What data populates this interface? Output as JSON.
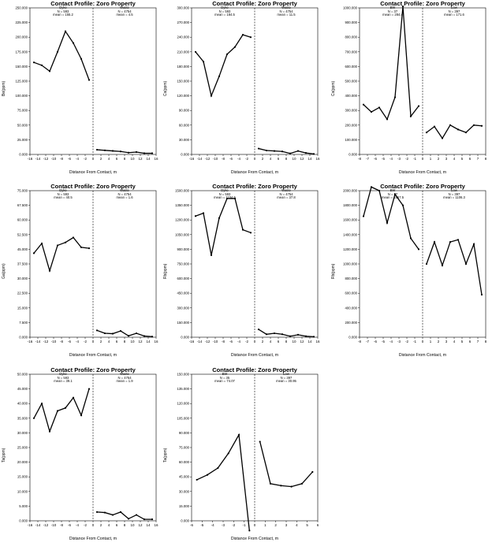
{
  "chart_data": [
    {
      "type": "line",
      "title": "Contact Profile: Zoro Property",
      "xlabel": "Distance From Contact, m",
      "ylabel": "Be(ppm)",
      "xlim": [
        -16,
        16
      ],
      "ylim": [
        0,
        250000
      ],
      "yticks": [
        0,
        25000,
        50000,
        75000,
        100000,
        125000,
        150000,
        175000,
        200000,
        225000,
        250000
      ],
      "ytick_labels": [
        "0.000",
        "25.000",
        "50.000",
        "75.000",
        "100.000",
        "125.000",
        "150.000",
        "175.000",
        "200.000",
        "225.000",
        "250.000"
      ],
      "xticks": [
        -16,
        -14,
        -12,
        -10,
        -8,
        -6,
        -4,
        -2,
        0,
        2,
        4,
        6,
        8,
        10,
        12,
        14,
        16
      ],
      "groups": [
        {
          "name": "Dyke",
          "n": "N = 593",
          "mean": "mean = 155.2"
        },
        {
          "name": "Waste",
          "n": "N = 4754",
          "mean": "mean = 4.5"
        }
      ],
      "series": [
        {
          "name": "Dyke",
          "x": [
            -15,
            -13,
            -11,
            -9,
            -7,
            -5,
            -3,
            -1
          ],
          "y": [
            157000,
            152000,
            142000,
            175000,
            210000,
            190000,
            163000,
            127000
          ]
        },
        {
          "name": "Waste",
          "x": [
            1,
            3,
            5,
            7,
            9,
            11,
            13,
            15
          ],
          "y": [
            8000,
            7000,
            6000,
            5000,
            3000,
            4000,
            2000,
            2000
          ]
        }
      ]
    },
    {
      "type": "line",
      "title": "Contact Profile: Zoro Property",
      "xlabel": "Distance From Contact, m",
      "ylabel": "Cs(ppm)",
      "xlim": [
        -16,
        16
      ],
      "ylim": [
        0,
        300000
      ],
      "yticks": [
        0,
        30000,
        60000,
        90000,
        120000,
        150000,
        180000,
        210000,
        240000,
        270000,
        300000
      ],
      "ytick_labels": [
        "0.000",
        "30.000",
        "60.000",
        "90.000",
        "120.000",
        "150.000",
        "180.000",
        "210.000",
        "240.000",
        "270.000",
        "300.000"
      ],
      "xticks": [
        -16,
        -14,
        -12,
        -10,
        -8,
        -6,
        -4,
        -2,
        0,
        2,
        4,
        6,
        8,
        10,
        12,
        14,
        16
      ],
      "groups": [
        {
          "name": "Dyke",
          "n": "N = 593",
          "mean": "mean = 184.5"
        },
        {
          "name": "Waste",
          "n": "N = 4754",
          "mean": "mean = 11.5"
        }
      ],
      "series": [
        {
          "name": "Dyke",
          "x": [
            -15,
            -13,
            -11,
            -9,
            -7,
            -5,
            -3,
            -1
          ],
          "y": [
            210000,
            190000,
            120000,
            160000,
            205000,
            220000,
            245000,
            240000
          ]
        },
        {
          "name": "Waste",
          "x": [
            1,
            3,
            5,
            7,
            9,
            11,
            13,
            15
          ],
          "y": [
            12000,
            8000,
            7000,
            6000,
            2000,
            7000,
            3000,
            1000
          ]
        }
      ]
    },
    {
      "type": "line",
      "title": "Contact Profile: Zoro Property",
      "xlabel": "Distance From Contact, m",
      "ylabel": "Cs(ppm)",
      "xlim": [
        -8,
        8
      ],
      "ylim": [
        0,
        1000000
      ],
      "yticks": [
        0,
        100000,
        200000,
        300000,
        400000,
        500000,
        600000,
        700000,
        800000,
        900000,
        1000000
      ],
      "ytick_labels": [
        "0.000",
        "100.000",
        "200.000",
        "300.000",
        "400.000",
        "500.000",
        "600.000",
        "700.000",
        "800.000",
        "900.000",
        "1000.000"
      ],
      "xticks": [
        -8,
        -7,
        -6,
        -5,
        -4,
        -3,
        -2,
        -1,
        0,
        1,
        2,
        3,
        4,
        5,
        6,
        7,
        8
      ],
      "groups": [
        {
          "name": "EW",
          "n": "N = 37",
          "mean": "mean = 284.4"
        },
        {
          "name": "Low",
          "n": "N = 397",
          "mean": "mean = 171.6"
        }
      ],
      "series": [
        {
          "name": "EW",
          "x": [
            -7.5,
            -6.5,
            -5.5,
            -4.5,
            -3.5,
            -2.5,
            -1.5,
            -0.5
          ],
          "y": [
            340000,
            290000,
            320000,
            240000,
            390000,
            1010000,
            260000,
            330000
          ]
        },
        {
          "name": "Low",
          "x": [
            0.5,
            1.5,
            2.5,
            3.5,
            4.5,
            5.5,
            6.5,
            7.5
          ],
          "y": [
            150000,
            190000,
            110000,
            200000,
            170000,
            150000,
            200000,
            195000
          ]
        }
      ]
    },
    {
      "type": "line",
      "title": "Contact Profile: Zoro Property",
      "xlabel": "Distance From Contact, m",
      "ylabel": "Ga(ppm)",
      "xlim": [
        -16,
        16
      ],
      "ylim": [
        0,
        75000
      ],
      "yticks": [
        0,
        7500,
        15000,
        22500,
        30000,
        37500,
        45000,
        52500,
        60000,
        67500,
        75000
      ],
      "ytick_labels": [
        "0.000",
        "7.500",
        "15.000",
        "22.500",
        "30.000",
        "37.500",
        "45.000",
        "52.500",
        "60.000",
        "67.500",
        "75.000"
      ],
      "xticks": [
        -16,
        -14,
        -12,
        -10,
        -8,
        -6,
        -4,
        -2,
        0,
        2,
        4,
        6,
        8,
        10,
        12,
        14,
        16
      ],
      "groups": [
        {
          "name": "Dyke",
          "n": "N = 593",
          "mean": "mean = 40.5"
        },
        {
          "name": "Waste",
          "n": "N = 4754",
          "mean": "mean = 1.6"
        }
      ],
      "series": [
        {
          "name": "Dyke",
          "x": [
            -15,
            -13,
            -11,
            -9,
            -7,
            -5,
            -3,
            -1
          ],
          "y": [
            43000,
            48000,
            34000,
            47000,
            48500,
            51000,
            46000,
            45500
          ]
        },
        {
          "name": "Waste",
          "x": [
            1,
            3,
            5,
            7,
            9,
            11,
            13,
            15
          ],
          "y": [
            3500,
            2000,
            1800,
            3200,
            700,
            2000,
            600,
            300
          ]
        }
      ]
    },
    {
      "type": "line",
      "title": "Contact Profile: Zoro Property",
      "xlabel": "Distance From Contact, m",
      "ylabel": "Rb(ppm)",
      "xlim": [
        -16,
        16
      ],
      "ylim": [
        0,
        1500000
      ],
      "yticks": [
        0,
        150000,
        300000,
        450000,
        600000,
        750000,
        900000,
        1050000,
        1200000,
        1350000,
        1500000
      ],
      "ytick_labels": [
        "0.000",
        "150.000",
        "300.000",
        "450.000",
        "600.000",
        "750.000",
        "900.000",
        "1050.000",
        "1200.000",
        "1350.000",
        "1500.000"
      ],
      "xticks": [
        -16,
        -14,
        -12,
        -10,
        -8,
        -6,
        -4,
        -2,
        0,
        2,
        4,
        6,
        8,
        10,
        12,
        14,
        16
      ],
      "groups": [
        {
          "name": "Dyke",
          "n": "N = 593",
          "mean": "mean = 1104.5"
        },
        {
          "name": "Waste",
          "n": "N = 4754",
          "mean": "mean = 37.8"
        }
      ],
      "series": [
        {
          "name": "Dyke",
          "x": [
            -15,
            -13,
            -11,
            -9,
            -7,
            -5,
            -3,
            -1
          ],
          "y": [
            1240000,
            1270000,
            840000,
            1220000,
            1420000,
            1420000,
            1100000,
            1070000
          ]
        },
        {
          "name": "Waste",
          "x": [
            1,
            3,
            5,
            7,
            9,
            11,
            13,
            15
          ],
          "y": [
            80000,
            30000,
            40000,
            30000,
            10000,
            25000,
            10000,
            5000
          ]
        }
      ]
    },
    {
      "type": "line",
      "title": "Contact Profile: Zoro Property",
      "xlabel": "Distance From Contact, m",
      "ylabel": "Rb(ppm)",
      "xlim": [
        -8,
        8
      ],
      "ylim": [
        0,
        2000000
      ],
      "yticks": [
        0,
        200000,
        400000,
        600000,
        800000,
        1000000,
        1200000,
        1400000,
        1600000,
        1800000,
        2000000
      ],
      "ytick_labels": [
        "0.000",
        "200.000",
        "400.000",
        "600.000",
        "800.000",
        "1000.000",
        "1200.000",
        "1400.000",
        "1600.000",
        "1800.000",
        "2000.000"
      ],
      "xticks": [
        -8,
        -7,
        -6,
        -5,
        -4,
        -3,
        -2,
        -1,
        0,
        1,
        2,
        3,
        4,
        5,
        6,
        7,
        8
      ],
      "groups": [
        {
          "name": "EW",
          "n": "N = 37",
          "mean": "mean = 1557.5"
        },
        {
          "name": "Low",
          "n": "N = 397",
          "mean": "mean = 1106.3"
        }
      ],
      "series": [
        {
          "name": "EW",
          "x": [
            -7.5,
            -6.5,
            -5.5,
            -4.5,
            -3.5,
            -2.5,
            -1.5,
            -0.5
          ],
          "y": [
            1650000,
            2050000,
            2000000,
            1560000,
            1950000,
            1800000,
            1350000,
            1200000
          ]
        },
        {
          "name": "Low",
          "x": [
            0.5,
            1.5,
            2.5,
            3.5,
            4.5,
            5.5,
            6.5,
            7.5
          ],
          "y": [
            1000000,
            1300000,
            980000,
            1300000,
            1330000,
            1000000,
            1270000,
            580000
          ]
        }
      ]
    },
    {
      "type": "line",
      "title": "Contact Profile: Zoro Property",
      "xlabel": "Distance From Contact, m",
      "ylabel": "Ta(ppm)",
      "xlim": [
        -16,
        16
      ],
      "ylim": [
        0,
        50000
      ],
      "yticks": [
        0,
        5000,
        10000,
        15000,
        20000,
        25000,
        30000,
        35000,
        40000,
        45000,
        50000
      ],
      "ytick_labels": [
        "0.000",
        "5.000",
        "10.000",
        "15.000",
        "20.000",
        "25.000",
        "30.000",
        "35.000",
        "40.000",
        "45.000",
        "50.000"
      ],
      "xticks": [
        -16,
        -14,
        -12,
        -10,
        -8,
        -6,
        -4,
        -2,
        0,
        2,
        4,
        6,
        8,
        10,
        12,
        14,
        16
      ],
      "groups": [
        {
          "name": "Dyke",
          "n": "N = 593",
          "mean": "mean = 39.1"
        },
        {
          "name": "Waste",
          "n": "N = 4754",
          "mean": "mean = 1.9"
        }
      ],
      "series": [
        {
          "name": "Dyke",
          "x": [
            -15,
            -13,
            -11,
            -9,
            -7,
            -5,
            -3,
            -1
          ],
          "y": [
            35000,
            40000,
            30500,
            37500,
            38500,
            42000,
            36000,
            45000
          ]
        },
        {
          "name": "Waste",
          "x": [
            1,
            3,
            5,
            7,
            9,
            11,
            13,
            15
          ],
          "y": [
            3000,
            2800,
            2000,
            3000,
            700,
            2000,
            500,
            500
          ]
        }
      ]
    },
    {
      "type": "line",
      "title": "Contact Profile: Zoro Property",
      "xlabel": "Distance From Contact, m",
      "ylabel": "Ta(ppm)",
      "xlim": [
        -6,
        6
      ],
      "ylim": [
        0,
        150000
      ],
      "yticks": [
        0,
        15000,
        30000,
        45000,
        60000,
        75000,
        90000,
        105000,
        120000,
        135000,
        150000
      ],
      "ytick_labels": [
        "0.000",
        "15.000",
        "30.000",
        "45.000",
        "60.000",
        "75.000",
        "90.000",
        "105.000",
        "120.000",
        "135.000",
        "150.000"
      ],
      "xticks": [
        -6,
        -5,
        -4,
        -3,
        -2,
        -1,
        0,
        1,
        2,
        3,
        4,
        5,
        6
      ],
      "groups": [
        {
          "name": "EW",
          "n": "N = 35",
          "mean": "mean = 74.07"
        },
        {
          "name": "Low",
          "n": "N = 397",
          "mean": "mean = 30.95"
        }
      ],
      "series": [
        {
          "name": "EW",
          "x": [
            -5.5,
            -4.5,
            -3.5,
            -2.5,
            -1.5,
            -0.5
          ],
          "y": [
            42000,
            47000,
            54000,
            69000,
            88000,
            -10000
          ]
        },
        {
          "name": "Low",
          "x": [
            0.5,
            1.5,
            2.5,
            3.5,
            4.5,
            5.5
          ],
          "y": [
            81000,
            38000,
            36000,
            35000,
            38000,
            50000
          ]
        }
      ]
    }
  ]
}
